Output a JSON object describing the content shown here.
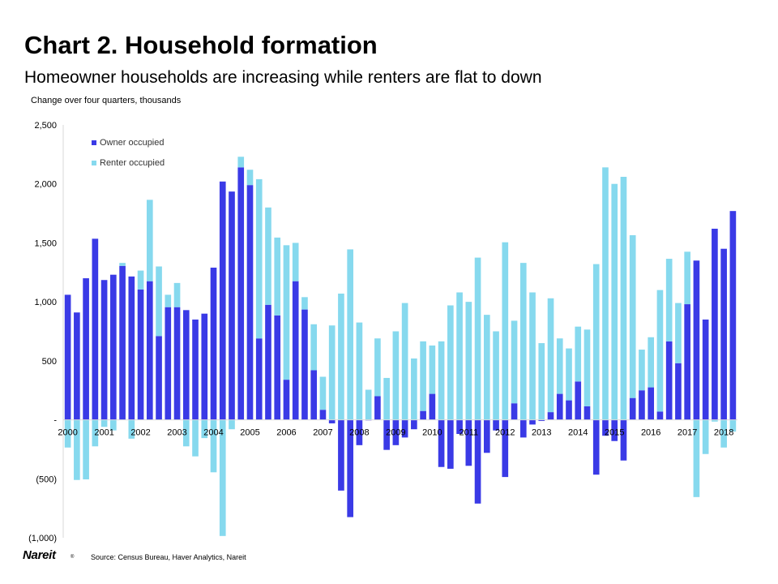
{
  "header": {
    "title": "Chart 2. Household formation",
    "subtitle": "Homeowner households are increasing while renters are flat to down",
    "units": "Change over four quarters, thousands"
  },
  "footer": {
    "source": "Source: Census Bureau, Haver Analytics, Nareit",
    "logo_text": "Nareit",
    "logo_mark": "®"
  },
  "colors": {
    "owner": "#3a3ae6",
    "renter": "#86d9ee",
    "axis": "#d9d9d9"
  },
  "chart_data": {
    "type": "bar",
    "stacked": true,
    "title": "Chart 2. Household formation",
    "subtitle": "Homeowner households are increasing while renters are flat to down",
    "ylabel": "Change over four quarters, thousands",
    "ylim": [
      -1000,
      2500
    ],
    "yticks": [
      2500,
      2000,
      1500,
      1000,
      500,
      0,
      -500,
      -1000
    ],
    "ytick_labels": [
      "2,500",
      "2,000",
      "1,500",
      "1,000",
      "500",
      "-",
      "(500)",
      "(1,000)"
    ],
    "x_labels": [
      "2000",
      "2001",
      "2002",
      "2003",
      "2004",
      "2005",
      "2006",
      "2007",
      "2008",
      "2009",
      "2010",
      "2011",
      "2012",
      "2013",
      "2014",
      "2015",
      "2016",
      "2017",
      "2018"
    ],
    "x_label_every": 4,
    "legend": "top-left",
    "series": [
      {
        "name": "Owner occupied",
        "color": "#3a3ae6",
        "values": [
          1060,
          910,
          1200,
          1535,
          1185,
          1230,
          1305,
          1215,
          1105,
          1175,
          710,
          955,
          955,
          930,
          850,
          900,
          1290,
          2020,
          1935,
          2140,
          1990,
          690,
          975,
          885,
          340,
          1175,
          935,
          420,
          85,
          -30,
          -600,
          -825,
          -215,
          -5,
          200,
          -255,
          -215,
          -150,
          -80,
          75,
          220,
          -400,
          -415,
          -120,
          -390,
          -710,
          -280,
          -90,
          -485,
          140,
          -150,
          -40,
          -10,
          65,
          220,
          165,
          325,
          115,
          -465,
          -135,
          -180,
          -345,
          185,
          250,
          275,
          70,
          665,
          480,
          980,
          1350,
          850,
          1620,
          1450,
          1770
        ]
      },
      {
        "name": "Renter occupied",
        "color": "#86d9ee",
        "values": [
          -235,
          -510,
          -505,
          -225,
          -60,
          -90,
          25,
          -160,
          160,
          690,
          590,
          105,
          205,
          -225,
          -310,
          -155,
          -445,
          -985,
          -80,
          90,
          130,
          1350,
          825,
          660,
          1140,
          325,
          105,
          390,
          280,
          800,
          1070,
          1445,
          825,
          255,
          490,
          355,
          750,
          990,
          520,
          590,
          410,
          665,
          970,
          1080,
          1000,
          1375,
          890,
          750,
          1505,
          700,
          1330,
          1080,
          650,
          965,
          470,
          440,
          465,
          650,
          1320,
          2140,
          2000,
          2060,
          1380,
          345,
          425,
          1030,
          700,
          510,
          445,
          -655,
          -290,
          -15,
          -235,
          -100
        ]
      }
    ]
  }
}
